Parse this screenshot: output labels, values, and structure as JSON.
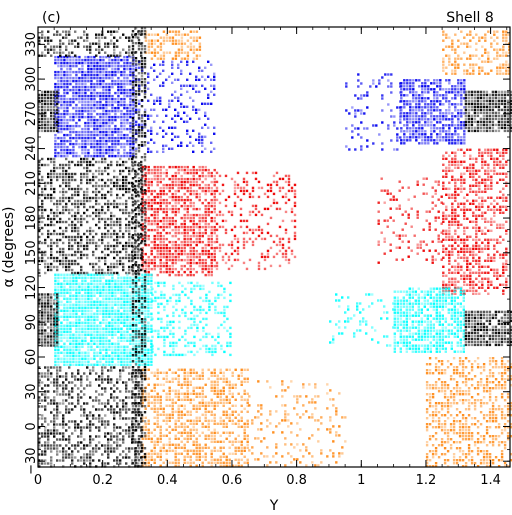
{
  "chart_data": {
    "type": "scatter",
    "panel_label": "(c)",
    "annotation": "Shell 8",
    "xlabel": "Y",
    "ylabel": "α (degrees)",
    "xlim": [
      0,
      1.46
    ],
    "ylim": [
      -35,
      345
    ],
    "xticks": [
      0,
      0.2,
      0.4,
      0.6,
      0.8,
      1,
      1.2,
      1.4
    ],
    "xtick_labels": [
      "0",
      "0.2",
      "0.4",
      "0.6",
      "0.8",
      "1",
      "1.2",
      "1.4"
    ],
    "yticks": [
      -30,
      0,
      30,
      60,
      90,
      120,
      150,
      180,
      210,
      240,
      270,
      300,
      330
    ],
    "ytick_labels": [
      "−30",
      "0",
      "30",
      "60",
      "90",
      "120",
      "150",
      "180",
      "210",
      "240",
      "270",
      "300",
      "330"
    ],
    "grid": false,
    "legend": "none",
    "series": [
      {
        "color": "#0000ee",
        "regions": [
          {
            "x": [
              0.05,
              0.3
            ],
            "y": [
              232,
              320
            ],
            "density": 0.85
          },
          {
            "x": [
              0.3,
              0.55
            ],
            "y": [
              236,
              316
            ],
            "density": 0.28
          },
          {
            "x": [
              0.95,
              1.12
            ],
            "y": [
              240,
              305
            ],
            "density": 0.18
          },
          {
            "x": [
              1.12,
              1.32
            ],
            "y": [
              245,
              300
            ],
            "density": 0.75
          }
        ]
      },
      {
        "color": "#ee0000",
        "regions": [
          {
            "x": [
              0.32,
              0.55
            ],
            "y": [
              130,
              225
            ],
            "density": 0.7
          },
          {
            "x": [
              0.55,
              0.8
            ],
            "y": [
              135,
              220
            ],
            "density": 0.25
          },
          {
            "x": [
              1.25,
              1.45
            ],
            "y": [
              115,
              240
            ],
            "density": 0.55
          },
          {
            "x": [
              1.05,
              1.25
            ],
            "y": [
              140,
              215
            ],
            "density": 0.18
          }
        ]
      },
      {
        "color": "#00ffff",
        "regions": [
          {
            "x": [
              0.05,
              0.35
            ],
            "y": [
              52,
              132
            ],
            "density": 0.9
          },
          {
            "x": [
              0.35,
              0.6
            ],
            "y": [
              62,
              125
            ],
            "density": 0.35
          },
          {
            "x": [
              1.1,
              1.32
            ],
            "y": [
              65,
              120
            ],
            "density": 0.75
          },
          {
            "x": [
              0.9,
              1.1
            ],
            "y": [
              70,
              115
            ],
            "density": 0.15
          }
        ]
      },
      {
        "color": "#ff8c1a",
        "regions": [
          {
            "x": [
              0.32,
              0.65
            ],
            "y": [
              -35,
              50
            ],
            "density": 0.55
          },
          {
            "x": [
              0.65,
              0.95
            ],
            "y": [
              -35,
              40
            ],
            "density": 0.15
          },
          {
            "x": [
              1.2,
              1.46
            ],
            "y": [
              -35,
              60
            ],
            "density": 0.5
          },
          {
            "x": [
              0.33,
              0.5
            ],
            "y": [
              318,
              342
            ],
            "density": 0.6
          },
          {
            "x": [
              1.25,
              1.46
            ],
            "y": [
              305,
              342
            ],
            "density": 0.45
          }
        ]
      },
      {
        "color": "#000000",
        "regions": [
          {
            "x": [
              0.0,
              0.32
            ],
            "y": [
              -35,
              52
            ],
            "density": 0.5
          },
          {
            "x": [
              0.0,
              0.32
            ],
            "y": [
              132,
              232
            ],
            "density": 0.55
          },
          {
            "x": [
              0.0,
              0.32
            ],
            "y": [
              320,
              342
            ],
            "density": 0.5
          },
          {
            "x": [
              0.0,
              0.06
            ],
            "y": [
              70,
              115
            ],
            "density": 0.95
          },
          {
            "x": [
              0.0,
              0.06
            ],
            "y": [
              255,
              290
            ],
            "density": 0.95
          },
          {
            "x": [
              1.32,
              1.46
            ],
            "y": [
              255,
              290
            ],
            "density": 0.95
          },
          {
            "x": [
              1.32,
              1.46
            ],
            "y": [
              70,
              100
            ],
            "density": 0.9
          },
          {
            "x": [
              0.29,
              0.33
            ],
            "y": [
              -35,
              345
            ],
            "density": 0.6
          }
        ]
      }
    ]
  }
}
